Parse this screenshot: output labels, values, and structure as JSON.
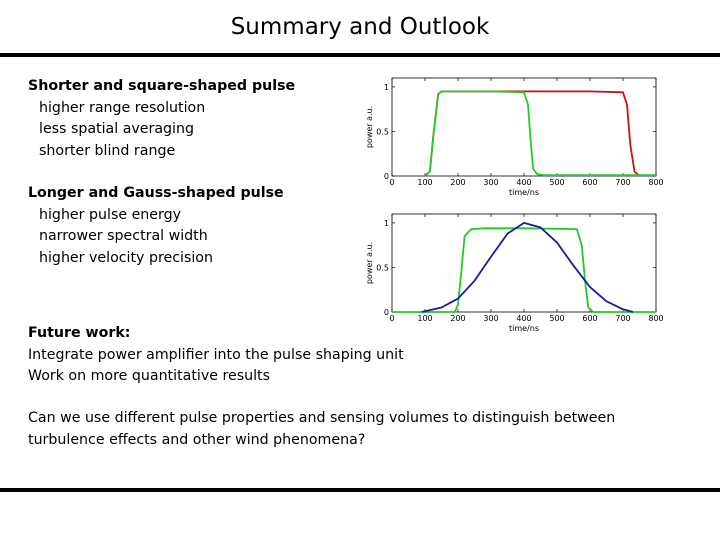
{
  "slide": {
    "title": "Summary and Outlook",
    "section1": {
      "heading": "Shorter and square-shaped pulse",
      "items": [
        "higher range resolution",
        "less spatial averaging",
        "shorter blind range"
      ]
    },
    "section2": {
      "heading": "Longer and Gauss-shaped pulse",
      "items": [
        "higher pulse energy",
        "narrower spectral width",
        "higher velocity precision"
      ]
    },
    "future": {
      "heading": "Future work:",
      "items": [
        "Integrate power amplifier into the pulse shaping unit",
        "Work on more quantitative results"
      ]
    },
    "question": [
      "Can we use different pulse properties and sensing volumes to distinguish between",
      "turbulence effects and other wind phenomena?"
    ]
  },
  "chart_data": [
    {
      "type": "line",
      "xlabel": "time/ns",
      "ylabel": "power a.u.",
      "xlim": [
        0,
        800
      ],
      "ylim": [
        0,
        1.1
      ],
      "xticks": [
        "0",
        "100",
        "200",
        "300",
        "400",
        "500",
        "600",
        "700",
        "800"
      ],
      "yticks": [
        "0",
        "0.5",
        "1"
      ],
      "grid": false,
      "series": [
        {
          "color": "#cc1111",
          "x": [
            100,
            115,
            125,
            140,
            150,
            300,
            600,
            700,
            712,
            722,
            735,
            750
          ],
          "y": [
            0,
            0.05,
            0.45,
            0.92,
            0.95,
            0.95,
            0.95,
            0.94,
            0.8,
            0.35,
            0.05,
            0
          ]
        },
        {
          "color": "#22cc22",
          "x": [
            100,
            115,
            125,
            140,
            150,
            300,
            400,
            412,
            420,
            428,
            440,
            460,
            800
          ],
          "y": [
            0,
            0.05,
            0.45,
            0.92,
            0.95,
            0.95,
            0.94,
            0.8,
            0.4,
            0.08,
            0.02,
            0.01,
            0.01
          ]
        }
      ]
    },
    {
      "type": "line",
      "xlabel": "time/ns",
      "ylabel": "power a.u.",
      "xlim": [
        0,
        800
      ],
      "ylim": [
        0,
        1.1
      ],
      "xticks": [
        "0",
        "100",
        "200",
        "300",
        "400",
        "500",
        "600",
        "700",
        "800"
      ],
      "yticks": [
        "0",
        "0.5",
        "1"
      ],
      "grid": false,
      "series": [
        {
          "color": "#22cc22",
          "x": [
            0,
            190,
            200,
            210,
            220,
            240,
            280,
            400,
            560,
            575,
            585,
            595,
            610,
            800
          ],
          "y": [
            0,
            0,
            0.08,
            0.45,
            0.85,
            0.93,
            0.94,
            0.94,
            0.93,
            0.75,
            0.35,
            0.05,
            0,
            0
          ]
        },
        {
          "color": "#1a1a9e",
          "x": [
            90,
            150,
            200,
            250,
            300,
            350,
            400,
            450,
            500,
            550,
            600,
            650,
            700,
            730
          ],
          "y": [
            0,
            0.05,
            0.15,
            0.35,
            0.62,
            0.88,
            1.0,
            0.95,
            0.78,
            0.52,
            0.28,
            0.12,
            0.03,
            0
          ]
        }
      ]
    }
  ]
}
